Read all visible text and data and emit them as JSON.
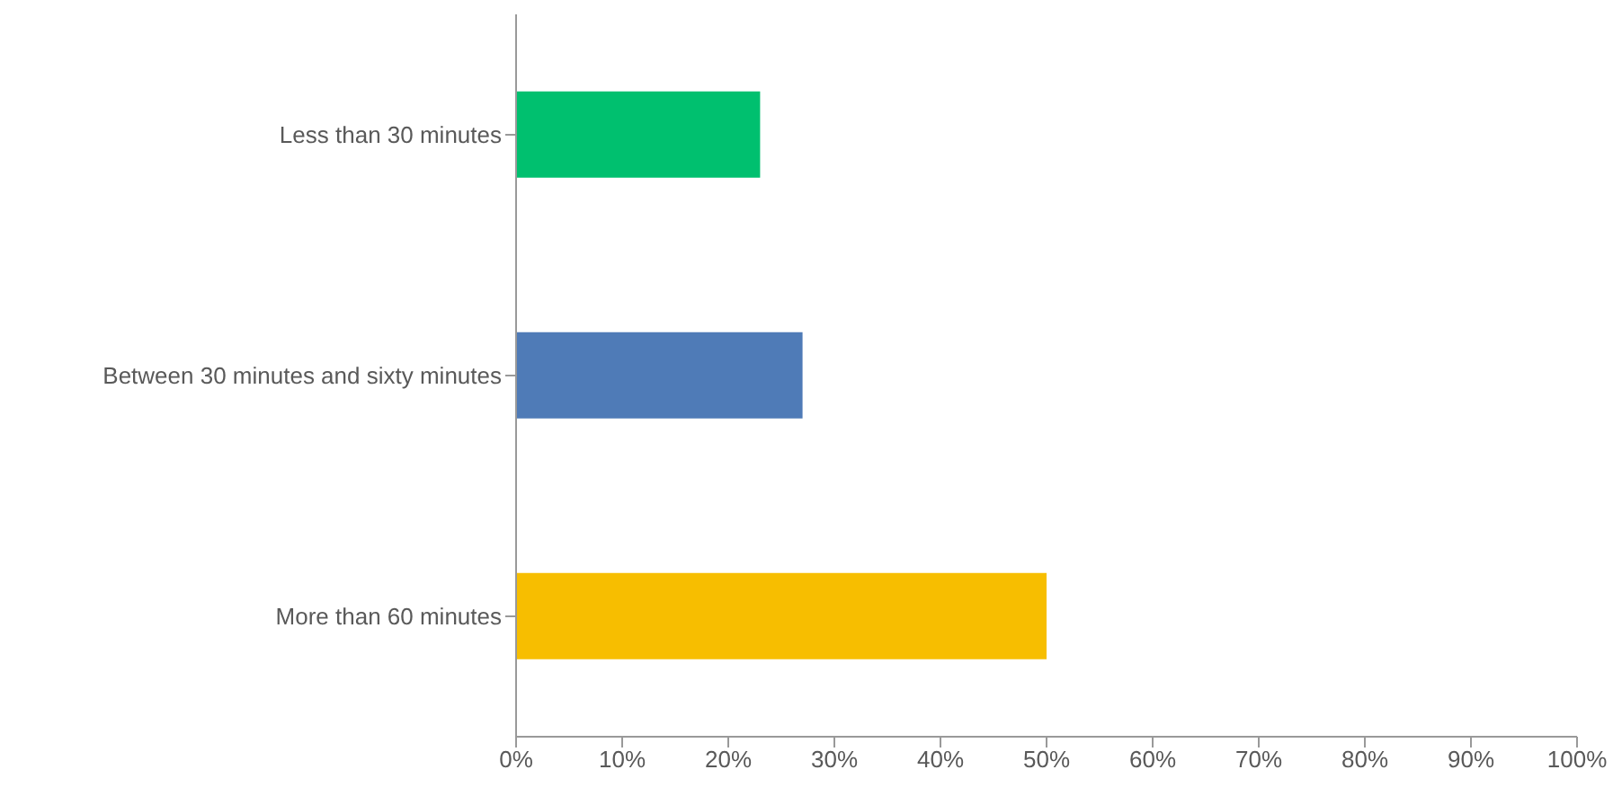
{
  "chart_data": {
    "type": "bar",
    "orientation": "horizontal",
    "categories": [
      "Less than 30 minutes",
      "Between 30 minutes and sixty minutes",
      "More than 60 minutes"
    ],
    "values": [
      23,
      27,
      50
    ],
    "colors": [
      "#00c06f",
      "#4f7bb7",
      "#f7be00"
    ],
    "xlim": [
      0,
      100
    ],
    "xticks": [
      {
        "value": 0,
        "label": "0%"
      },
      {
        "value": 10,
        "label": "10%"
      },
      {
        "value": 20,
        "label": "20%"
      },
      {
        "value": 30,
        "label": "30%"
      },
      {
        "value": 40,
        "label": "40%"
      },
      {
        "value": 50,
        "label": "50%"
      },
      {
        "value": 60,
        "label": "60%"
      },
      {
        "value": 70,
        "label": "70%"
      },
      {
        "value": 80,
        "label": "80%"
      },
      {
        "value": 90,
        "label": "90%"
      },
      {
        "value": 100,
        "label": "100%"
      }
    ],
    "grid": false,
    "legend": false
  }
}
